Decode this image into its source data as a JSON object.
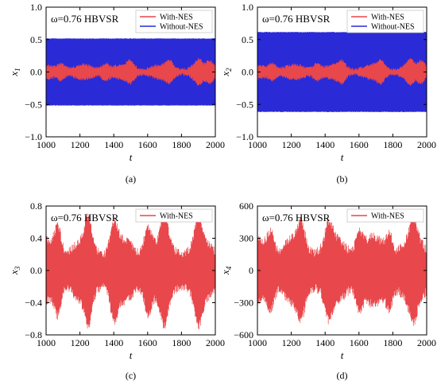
{
  "chart_data": [
    {
      "type": "line",
      "panel_label": "(a)",
      "annotation": "ω=0.76   HBVSR",
      "xlabel": "t",
      "ylabel": "x",
      "ylabel_sub": "1",
      "xlim": [
        1000,
        2000
      ],
      "ylim": [
        -1.0,
        1.0
      ],
      "xticks": [
        "1000",
        "1200",
        "1400",
        "1600",
        "1800",
        "2000"
      ],
      "xtick_values": [
        1000,
        1200,
        1400,
        1600,
        1800,
        2000
      ],
      "yticks": [
        "1.0",
        "0.5",
        "0.0",
        "−0.5",
        "−1.0"
      ],
      "ytick_values": [
        1.0,
        0.5,
        0.0,
        -0.5,
        -1.0
      ],
      "legend_position": "top-right",
      "series": [
        {
          "name": "Without-NES",
          "color": "#2a2ad6",
          "envelope": 0.52,
          "base": 0,
          "beat": 0
        },
        {
          "name": "With-NES",
          "color": "#e8474b",
          "envelope": 0.12,
          "base": 0.02,
          "beat": 0.09,
          "bursts": [
            1090,
            1350,
            1500,
            1730,
            1900,
            1970
          ]
        }
      ]
    },
    {
      "type": "line",
      "panel_label": "(b)",
      "annotation": "ω=0.76   HBVSR",
      "xlabel": "t",
      "ylabel": "x",
      "ylabel_sub": "2",
      "xlim": [
        1000,
        2000
      ],
      "ylim": [
        -1.0,
        1.0
      ],
      "xticks": [
        "1000",
        "1200",
        "1400",
        "1600",
        "1800",
        "2000"
      ],
      "xtick_values": [
        1000,
        1200,
        1400,
        1600,
        1800,
        2000
      ],
      "yticks": [
        "1.0",
        "0.5",
        "0.0",
        "−0.5",
        "−1.0"
      ],
      "ytick_values": [
        1.0,
        0.5,
        0.0,
        -0.5,
        -1.0
      ],
      "legend_position": "top-right",
      "series": [
        {
          "name": "Without-NES",
          "color": "#2a2ad6",
          "envelope": 0.62,
          "base": 0,
          "beat": 0
        },
        {
          "name": "With-NES",
          "color": "#e8474b",
          "envelope": 0.12,
          "base": 0.02,
          "beat": 0.09,
          "bursts": [
            1090,
            1350,
            1500,
            1730,
            1900,
            1970
          ]
        }
      ]
    },
    {
      "type": "line",
      "panel_label": "(c)",
      "annotation": "ω=0.76 HBVSR",
      "xlabel": "t",
      "ylabel": "x",
      "ylabel_sub": "3",
      "xlim": [
        1000,
        2000
      ],
      "ylim": [
        -0.8,
        0.8
      ],
      "xticks": [
        "1000",
        "1200",
        "1400",
        "1600",
        "1800",
        "2000"
      ],
      "xtick_values": [
        1000,
        1200,
        1400,
        1600,
        1800,
        2000
      ],
      "yticks": [
        "0.8",
        "0.4",
        "0.0",
        "−0.4",
        "−0.8"
      ],
      "ytick_values": [
        0.8,
        0.4,
        0.0,
        -0.4,
        -0.8
      ],
      "legend_position": "top-right",
      "series": [
        {
          "name": "With-NES",
          "color": "#e8474b",
          "envelope": 0.3,
          "base": 0.15,
          "beat": 0.32,
          "bursts": [
            1070,
            1250,
            1400,
            1600,
            1700,
            1900
          ]
        }
      ]
    },
    {
      "type": "line",
      "panel_label": "(d)",
      "annotation": "ω=0.76 HBVSR",
      "xlabel": "t",
      "ylabel": "x",
      "ylabel_sub": "4",
      "xlim": [
        1000,
        2000
      ],
      "ylim": [
        -600,
        600
      ],
      "xticks": [
        "1000",
        "1200",
        "1400",
        "1600",
        "1800",
        "2000"
      ],
      "xtick_values": [
        1000,
        1200,
        1400,
        1600,
        1800,
        2000
      ],
      "yticks": [
        "600",
        "300",
        "0",
        "−300",
        "−600"
      ],
      "ytick_values": [
        600,
        300,
        0,
        -300,
        -600
      ],
      "legend_position": "top-right",
      "series": [
        {
          "name": "With-NES",
          "color": "#e8474b",
          "envelope": 250,
          "base": 120,
          "beat": 180,
          "bursts": [
            1080,
            1260,
            1420,
            1600,
            1780,
            1920
          ]
        }
      ]
    }
  ]
}
